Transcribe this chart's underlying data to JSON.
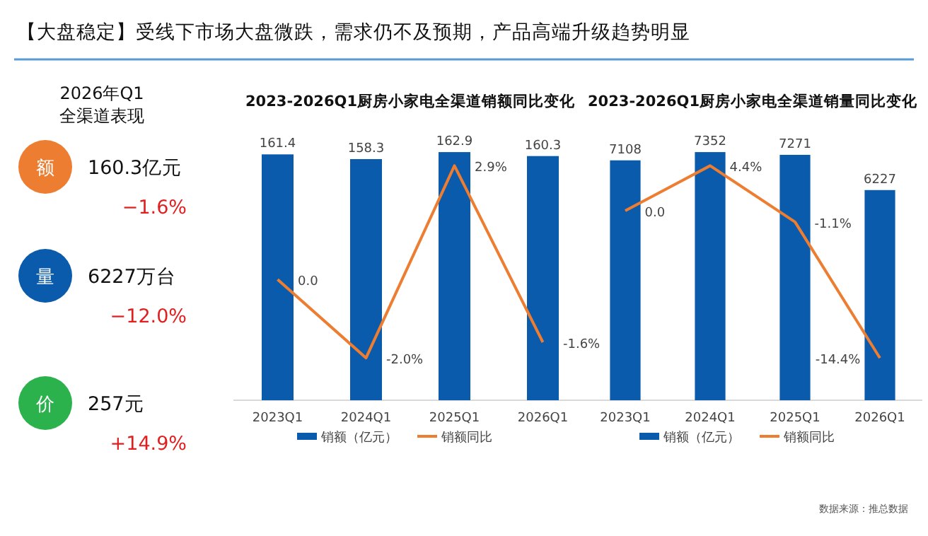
{
  "chart_data": [
    {
      "type": "other",
      "title": "【大盘稳定】受线下市场大盘微跌，需求仍不及预期，产品高端升级趋势明显",
      "subtitle": "2026年Q1\n全渠道表现",
      "annotations": [
        "额",
        "160.3亿元",
        "−1.6%",
        "量",
        "6227万台",
        "−12.0%",
        "价",
        "257元",
        "+14.9%"
      ],
      "colors": [
        "#ed7d31",
        "#0a5bab",
        "#2bb24c"
      ]
    },
    {
      "type": "bar",
      "title": "2023-2026Q1厨房小家电全渠道销额同比变化",
      "categories": [
        "2023Q1",
        "2024Q1",
        "2025Q1",
        "2026Q1"
      ],
      "series": [
        {
          "name": "销额（亿元）",
          "type": "bar",
          "color": "#0a5bab",
          "values": [
            161.4,
            158.3,
            162.9,
            160.3
          ],
          "value_labels": [
            "161.4",
            "158.3",
            "162.9",
            "160.3"
          ]
        },
        {
          "name": "销额同比",
          "type": "line",
          "axis": "y2",
          "color": "#ed7d31",
          "values": [
            0.0,
            -2.0,
            2.9,
            -1.6
          ],
          "value_labels": [
            "0.0",
            "-2.0%",
            "2.9%",
            "-1.6%"
          ]
        }
      ],
      "legend": "bottom",
      "tick_labels": "x",
      "marker": "none"
    },
    {
      "type": "bar",
      "title": "2023-2026Q1厨房小家电全渠道销量同比变化",
      "categories": [
        "2023Q1",
        "2024Q1",
        "2025Q1",
        "2026Q1"
      ],
      "series": [
        {
          "name": "销额（亿元）",
          "type": "bar",
          "color": "#0a5bab",
          "values": [
            7108,
            7352,
            7271,
            6227
          ],
          "value_labels": [
            "7108",
            "7352",
            "7271",
            "6227"
          ]
        },
        {
          "name": "销额同比",
          "type": "line",
          "axis": "y2",
          "color": "#ed7d31",
          "values": [
            0.0,
            4.4,
            -1.1,
            -14.4
          ],
          "value_labels": [
            "0.0",
            "4.4%",
            "-1.1%",
            "-14.4%"
          ]
        }
      ],
      "legend": "bottom",
      "tick_labels": "x",
      "marker": "none",
      "annotations": [
        "数据来源：推总数据"
      ]
    }
  ]
}
